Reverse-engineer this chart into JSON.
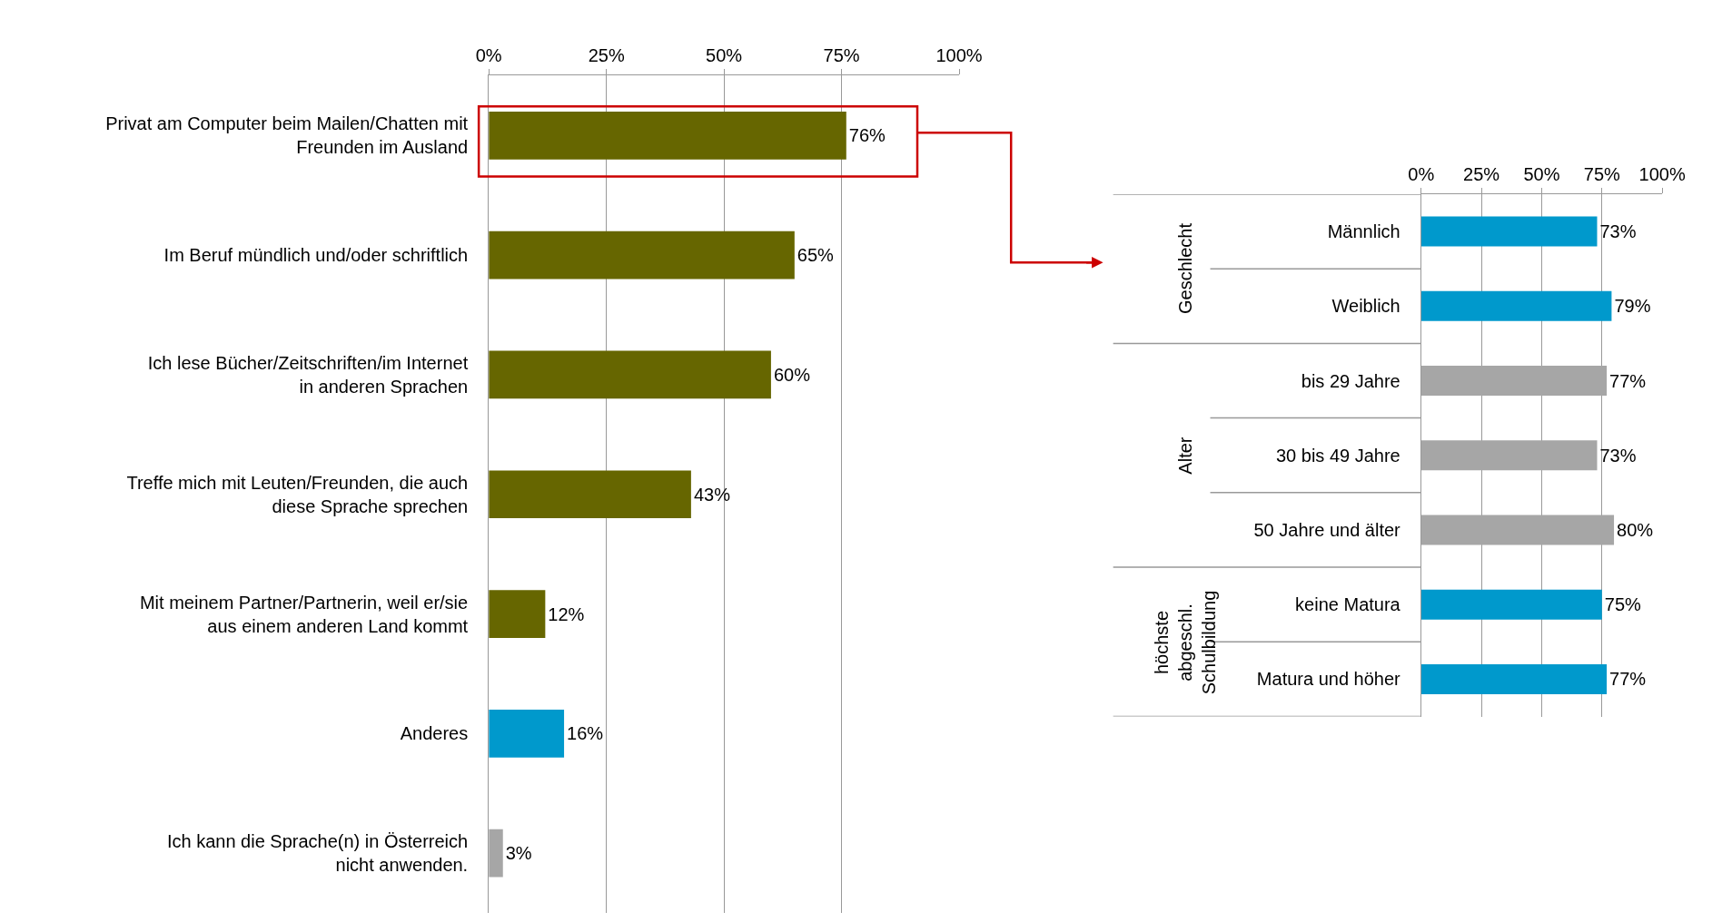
{
  "chart_data": [
    {
      "type": "bar",
      "orientation": "horizontal",
      "categories": [
        "Privat am Computer beim Mailen/Chatten mit Freunden im Ausland",
        "Im Beruf mündlich und/oder schriftlich",
        "Ich lese Bücher/Zeitschriften/im Internet in anderen Sprachen",
        "Treffe mich mit Leuten/Freunden, die auch diese Sprache sprechen",
        "Mit meinem Partner/Partnerin, weil er/sie aus einem anderen Land kommt",
        "Anderes",
        "Ich kann die Sprache(n) in Österreich nicht anwenden."
      ],
      "values": [
        76,
        65,
        60,
        43,
        12,
        16,
        3
      ],
      "value_labels": [
        "76%",
        "65%",
        "60%",
        "43%",
        "12%",
        "16%",
        "3%"
      ],
      "colors": [
        "#666600",
        "#666600",
        "#666600",
        "#666600",
        "#666600",
        "#0099cc",
        "#a6a6a6"
      ],
      "xlim": [
        0,
        100
      ],
      "xticks": [
        {
          "value": 0,
          "label": "0%"
        },
        {
          "value": 25,
          "label": "25%"
        },
        {
          "value": 50,
          "label": "50%"
        },
        {
          "value": 75,
          "label": "75%"
        },
        {
          "value": 100,
          "label": "100%"
        }
      ],
      "grid": "x",
      "legend": false
    },
    {
      "type": "bar",
      "orientation": "horizontal",
      "categories": [
        "Männlich",
        "Weiblich",
        "bis 29 Jahre",
        "30 bis 49 Jahre",
        "50 Jahre und älter",
        "keine Matura",
        "Matura und höher"
      ],
      "values": [
        73,
        79,
        77,
        73,
        80,
        75,
        77
      ],
      "value_labels": [
        "73%",
        "79%",
        "77%",
        "73%",
        "80%",
        "75%",
        "77%"
      ],
      "colors": [
        "#0099cc",
        "#0099cc",
        "#a6a6a6",
        "#a6a6a6",
        "#a6a6a6",
        "#0099cc",
        "#0099cc"
      ],
      "xlim": [
        0,
        100
      ],
      "xticks": [
        {
          "value": 0,
          "label": "0%"
        },
        {
          "value": 25,
          "label": "25%"
        },
        {
          "value": 50,
          "label": "50%"
        },
        {
          "value": 75,
          "label": "75%"
        },
        {
          "value": 100,
          "label": "100%"
        }
      ],
      "annotations": [
        "Geschlecht",
        "Alter",
        "höchste abgeschl. Schulbildung"
      ],
      "grid": "x",
      "legend": false
    }
  ]
}
